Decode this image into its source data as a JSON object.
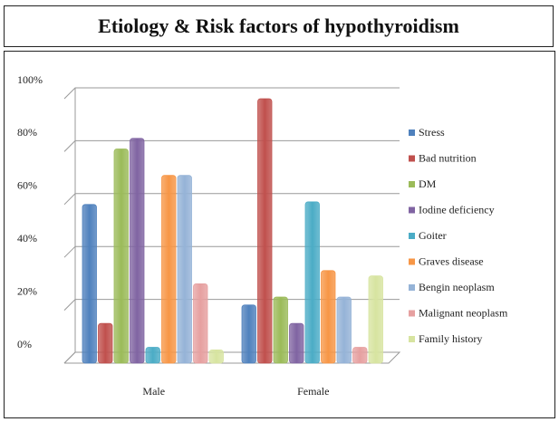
{
  "chart_data": {
    "type": "bar",
    "title": "Etiology & Risk factors of hypothyroidism",
    "categories": [
      "Male",
      "Female"
    ],
    "series": [
      {
        "name": "Stress",
        "color": "#4f81bd",
        "values": [
          60,
          22
        ]
      },
      {
        "name": "Bad nutrition",
        "color": "#c0504d",
        "values": [
          15,
          100
        ]
      },
      {
        "name": "DM",
        "color": "#9bbb59",
        "values": [
          81,
          25
        ]
      },
      {
        "name": "Iodine deficiency",
        "color": "#8064a2",
        "values": [
          85,
          15
        ]
      },
      {
        "name": "Goiter",
        "color": "#4bacc6",
        "values": [
          6,
          61
        ]
      },
      {
        "name": "Graves disease",
        "color": "#f79646",
        "values": [
          71,
          35
        ]
      },
      {
        "name": "Bengin neoplasm",
        "color": "#95b3d7",
        "values": [
          71,
          25
        ]
      },
      {
        "name": "Malignant neoplasm",
        "color": "#e6a0a0",
        "values": [
          30,
          6
        ]
      },
      {
        "name": "Family history",
        "color": "#d7e4a0",
        "values": [
          5,
          33
        ]
      }
    ],
    "ylim": [
      0,
      100
    ],
    "yticks": [
      {
        "value": 0,
        "label": "0%"
      },
      {
        "value": 20,
        "label": "20%"
      },
      {
        "value": 40,
        "label": "40%"
      },
      {
        "value": 60,
        "label": "60%"
      },
      {
        "value": 80,
        "label": "80%"
      },
      {
        "value": 100,
        "label": "100%"
      }
    ],
    "grid": true,
    "legend": "right"
  }
}
